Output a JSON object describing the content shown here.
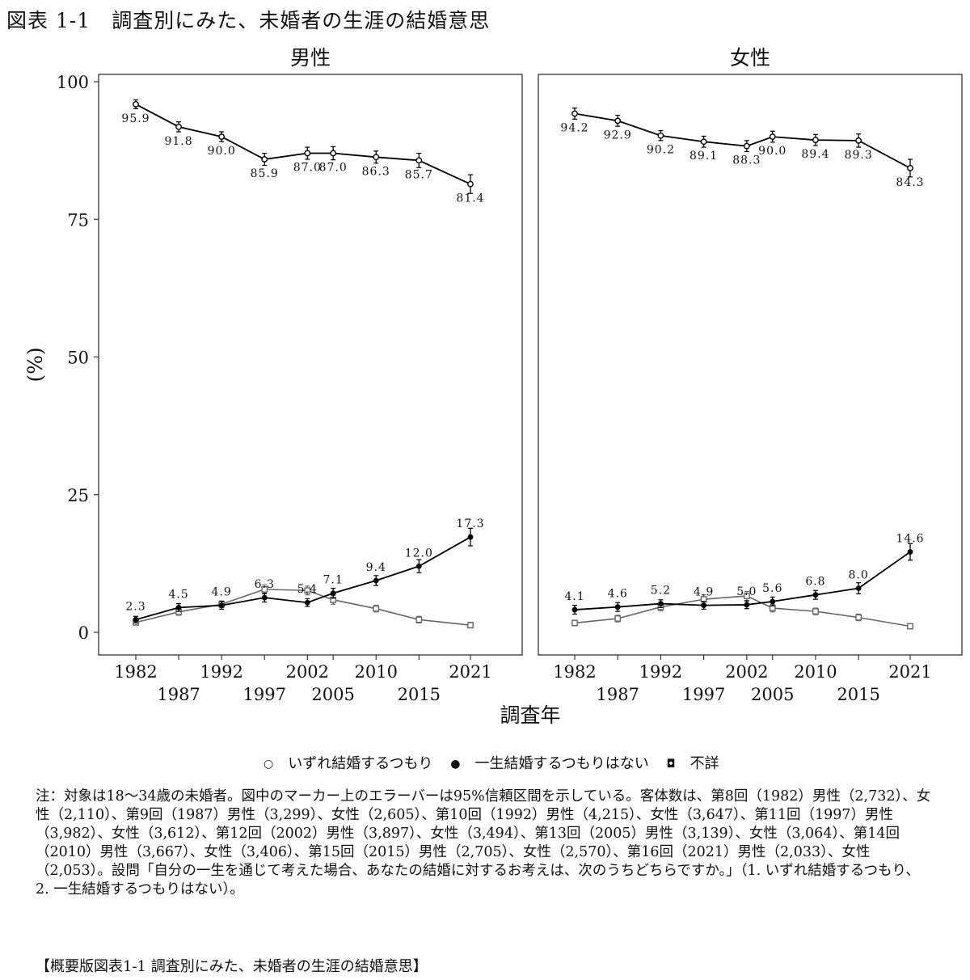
{
  "figure_title": "図表 1-1　調査別にみた、未婚者の生涯の結婚意思",
  "chart_data": {
    "type": "line",
    "xlabel": "調査年",
    "ylabel": "(%)",
    "ylim": [
      0,
      100
    ],
    "yticks": [
      0,
      25,
      50,
      75,
      100
    ],
    "x": [
      1982,
      1987,
      1992,
      1997,
      2002,
      2005,
      2010,
      2015,
      2021
    ],
    "xtick_labels": [
      "1982",
      "1987",
      "1992",
      "1997",
      "2002",
      "2005",
      "2010",
      "2015",
      "2021"
    ],
    "grid": false,
    "legend_position": "bottom",
    "legend": [
      {
        "label": "いずれ結婚するつもり",
        "marker": "open-circle"
      },
      {
        "label": "一生結婚するつもりはない",
        "marker": "filled-circle"
      },
      {
        "label": "不詳",
        "marker": "open-square"
      }
    ],
    "panels": [
      {
        "title": "男性",
        "series": [
          {
            "name": "いずれ結婚するつもり",
            "color": "#000000",
            "marker": "open-circle",
            "values": [
              95.9,
              91.8,
              90.0,
              85.9,
              87.0,
              87.0,
              86.3,
              85.7,
              81.4
            ],
            "labels": [
              "95.9",
              "91.8",
              "90.0",
              "85.9",
              "87.0",
              "87.0",
              "86.3",
              "85.7",
              "81.4"
            ],
            "error": [
              0.8,
              0.9,
              0.9,
              1.1,
              1.1,
              1.2,
              1.1,
              1.3,
              1.7
            ]
          },
          {
            "name": "一生結婚するつもりはない",
            "color": "#000000",
            "marker": "filled-circle",
            "values": [
              2.3,
              4.5,
              4.9,
              6.3,
              5.4,
              7.1,
              9.4,
              12.0,
              17.3
            ],
            "labels": [
              "2.3",
              "4.5",
              "4.9",
              "6.3",
              "5.4",
              "7.1",
              "9.4",
              "12.0",
              "17.3"
            ],
            "error": [
              0.6,
              0.7,
              0.7,
              0.8,
              0.7,
              0.9,
              0.9,
              1.2,
              1.6
            ]
          },
          {
            "name": "不詳",
            "color": "#666666",
            "marker": "open-square",
            "values": [
              1.8,
              3.7,
              5.1,
              7.8,
              7.6,
              5.9,
              4.3,
              2.3,
              1.3
            ],
            "error": [
              0.5,
              0.6,
              0.6,
              0.8,
              0.8,
              0.8,
              0.6,
              0.6,
              0.5
            ]
          }
        ]
      },
      {
        "title": "女性",
        "series": [
          {
            "name": "いずれ結婚するつもり",
            "color": "#000000",
            "marker": "open-circle",
            "values": [
              94.2,
              92.9,
              90.2,
              89.1,
              88.3,
              90.0,
              89.4,
              89.3,
              84.3
            ],
            "labels": [
              "94.2",
              "92.9",
              "90.2",
              "89.1",
              "88.3",
              "90.0",
              "89.4",
              "89.3",
              "84.3"
            ],
            "error": [
              1.0,
              1.0,
              0.9,
              1.0,
              1.0,
              1.0,
              1.0,
              1.2,
              1.6
            ]
          },
          {
            "name": "一生結婚するつもりはない",
            "color": "#000000",
            "marker": "filled-circle",
            "values": [
              4.1,
              4.6,
              5.2,
              4.9,
              5.0,
              5.6,
              6.8,
              8.0,
              14.6
            ],
            "labels": [
              "4.1",
              "4.6",
              "5.2",
              "4.9",
              "5.0",
              "5.6",
              "6.8",
              "8.0",
              "14.6"
            ],
            "error": [
              0.8,
              0.8,
              0.7,
              0.7,
              0.7,
              0.8,
              0.8,
              1.0,
              1.5
            ]
          },
          {
            "name": "不詳",
            "color": "#666666",
            "marker": "open-square",
            "values": [
              1.7,
              2.5,
              4.6,
              6.0,
              6.6,
              4.4,
              3.8,
              2.7,
              1.1
            ],
            "error": [
              0.5,
              0.6,
              0.7,
              0.8,
              0.8,
              0.7,
              0.6,
              0.6,
              0.4
            ]
          }
        ]
      }
    ]
  },
  "notes": "注：対象は18～34歳の未婚者。図中のマーカー上のエラーバーは95%信頼区間を示している。客体数は、第8回（1982）男性（2,732）、女性（2,110）、第9回（1987）男性（3,299）、女性（2,605）、第10回（1992）男性（4,215）、女性（3,647）、第11回（1997）男性（3,982）、女性（3,612）、第12回（2002）男性（3,897）、女性（3,494）、第13回（2005）男性（3,139）、女性（3,064）、第14回（2010）男性（3,667）、女性（3,406）、第15回（2015）男性（2,705）、女性（2,570）、第16回（2021）男性（2,033）、女性（2,053）。設問「自分の一生を通じて考えた場合、あなたの結婚に対するお考えは、次のうちどちらですか。」（1. いずれ結婚するつもり、2. 一生結婚するつもりはない）。",
  "footer": "【概要版図表1-1 調査別にみた、未婚者の生涯の結婚意思】"
}
